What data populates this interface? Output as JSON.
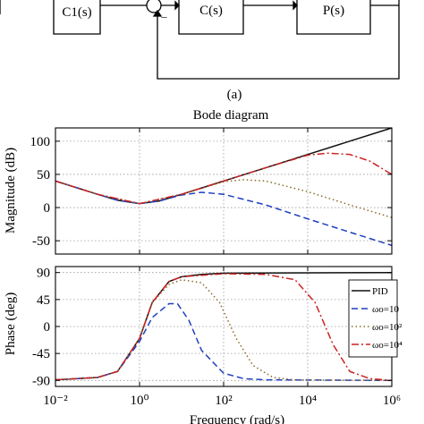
{
  "block_diagram": {
    "blocks": [
      "C1(s)",
      "C(s)",
      "P(s)"
    ],
    "minus_sign": "−",
    "caption": "(a)"
  },
  "chart_data": [
    {
      "type": "line",
      "title": "Bode diagram",
      "xlabel": "",
      "ylabel": "Magnitude (dB)",
      "xscale": "log",
      "xlim": [
        0.01,
        1000000
      ],
      "ylim": [
        -70,
        120
      ],
      "yticks": [
        100,
        50,
        0,
        -50
      ],
      "grid": true,
      "series": [
        {
          "name": "PID",
          "color": "#111111",
          "dash": "solid",
          "x": [
            0.01,
            0.1,
            0.3,
            1,
            3,
            10,
            100,
            1000,
            10000,
            100000,
            1000000
          ],
          "y": [
            40,
            20,
            11,
            6,
            10,
            20,
            40,
            60,
            80,
            100,
            120
          ]
        },
        {
          "name": "ωo=10",
          "color": "#1f3fbf",
          "dash": "dashed",
          "x": [
            0.01,
            0.1,
            0.3,
            1,
            3,
            10,
            30,
            100,
            1000,
            10000,
            100000,
            1000000
          ],
          "y": [
            40,
            20,
            11,
            6,
            10,
            19,
            23,
            20,
            4,
            -17,
            -37,
            -57
          ]
        },
        {
          "name": "ωo=10²",
          "color": "#8a6a2a",
          "dash": "dotted",
          "x": [
            0.01,
            0.1,
            1,
            10,
            100,
            300,
            1000,
            10000,
            100000,
            1000000
          ],
          "y": [
            40,
            20,
            6,
            20,
            39,
            42,
            40,
            24,
            4,
            -15
          ]
        },
        {
          "name": "ωo=10⁴",
          "color": "#cc2222",
          "dash": "dashdot",
          "x": [
            0.01,
            0.1,
            1,
            10,
            100,
            1000,
            10000,
            30000,
            100000,
            300000,
            1000000
          ],
          "y": [
            40,
            20,
            6,
            20,
            40,
            60,
            79,
            82,
            80,
            70,
            50
          ]
        }
      ]
    },
    {
      "type": "line",
      "title": "",
      "xlabel": "Frequency (rad/s)",
      "ylabel": "Phase (deg)",
      "xscale": "log",
      "xlim": [
        0.01,
        1000000
      ],
      "ylim": [
        -100,
        100
      ],
      "yticks": [
        90,
        45,
        0,
        -45,
        -90
      ],
      "xticks": [
        "10⁻²",
        "10⁰",
        "10²",
        "10⁴",
        "10⁶"
      ],
      "grid": true,
      "legend": "right",
      "series": [
        {
          "name": "PID",
          "color": "#111111",
          "dash": "solid",
          "x": [
            0.01,
            0.1,
            0.3,
            1,
            2,
            5,
            10,
            30,
            100,
            1000000
          ],
          "y": [
            -89,
            -85,
            -75,
            -20,
            40,
            75,
            83,
            87,
            89,
            90
          ]
        },
        {
          "name": "ωo=10",
          "color": "#1f3fbf",
          "dash": "dashed",
          "x": [
            0.01,
            0.1,
            0.3,
            1,
            2,
            5,
            8,
            15,
            30,
            100,
            300,
            1000,
            1000000
          ],
          "y": [
            -89,
            -85,
            -75,
            -25,
            15,
            38,
            38,
            10,
            -40,
            -78,
            -87,
            -89,
            -90
          ]
        },
        {
          "name": "ωo=10²",
          "color": "#8a6a2a",
          "dash": "dotted",
          "x": [
            0.01,
            0.1,
            0.3,
            1,
            2,
            5,
            10,
            30,
            80,
            200,
            500,
            1500,
            5000,
            1000000
          ],
          "y": [
            -89,
            -85,
            -75,
            -20,
            40,
            70,
            78,
            73,
            40,
            -20,
            -65,
            -85,
            -89,
            -90
          ]
        },
        {
          "name": "ωo=10⁴",
          "color": "#cc2222",
          "dash": "dashdot",
          "x": [
            0.01,
            0.1,
            0.3,
            1,
            2,
            5,
            10,
            100,
            1000,
            5000,
            15000,
            40000,
            100000,
            300000,
            1000000
          ],
          "y": [
            -89,
            -85,
            -75,
            -20,
            40,
            75,
            83,
            88,
            87,
            78,
            40,
            -30,
            -75,
            -87,
            -90
          ]
        }
      ]
    }
  ]
}
